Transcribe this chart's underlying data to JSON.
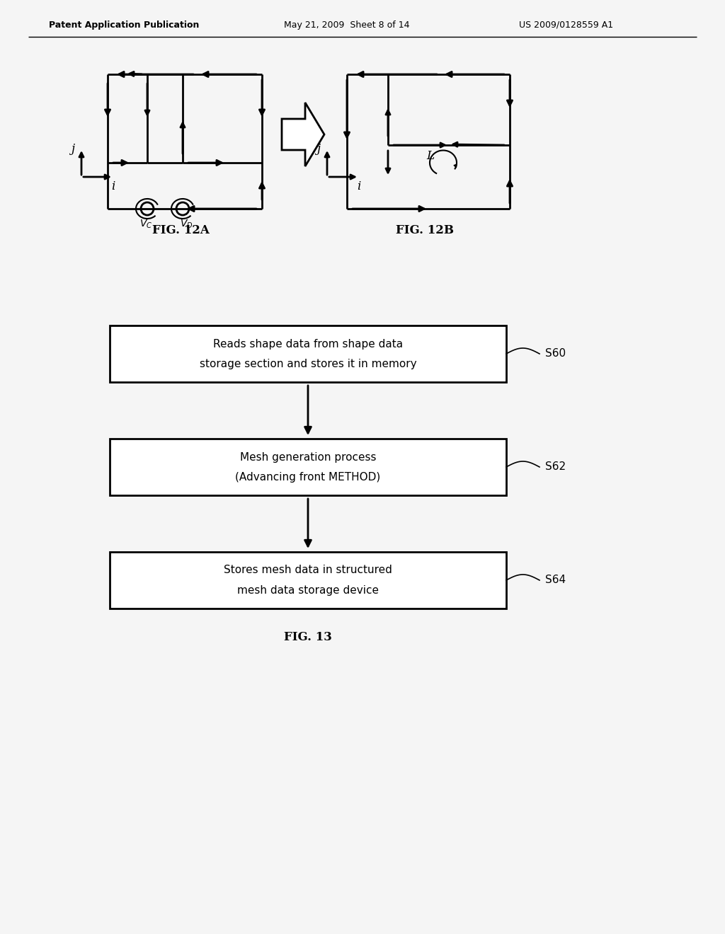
{
  "bg_color": "#f5f5f5",
  "header_left": "Patent Application Publication",
  "header_mid": "May 21, 2009  Sheet 8 of 14",
  "header_right": "US 2009/0128559 A1",
  "fig12a_label": "FIG. 12A",
  "fig12b_label": "FIG. 12B",
  "fig13_label": "FIG. 13",
  "flowchart_boxes": [
    "Reads shape data from shape data\nstorage section and stores it in memory",
    "Mesh generation process\n(Advancing front METHOD)",
    "Stores mesh data in structured\nmesh data storage device"
  ],
  "flowchart_labels": [
    "S60",
    "S62",
    "S64"
  ],
  "line_color": "#000000",
  "line_width": 2.0
}
